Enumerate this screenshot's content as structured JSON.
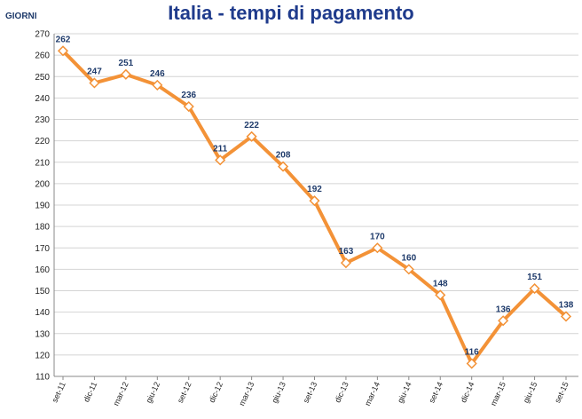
{
  "title": "Italia - tempi di pagamento",
  "colors": {
    "line": "#f39237",
    "marker_fill": "#ffffff",
    "grid": "#d4d4d4",
    "title": "#1f3b8c",
    "labels": "#1f3b6b"
  },
  "chart_data": {
    "type": "line",
    "title": "Italia - tempi di pagamento",
    "ylabel": "GIORNI",
    "xlabel": "",
    "categories": [
      "set-11",
      "dic-11",
      "mar-12",
      "giu-12",
      "set-12",
      "dic-12",
      "mar-13",
      "giu-13",
      "set-13",
      "dic-13",
      "mar-14",
      "giu-14",
      "set-14",
      "dic-14",
      "mar-15",
      "giu-15",
      "set-15"
    ],
    "series": [
      {
        "values": [
          262,
          247,
          251,
          246,
          236,
          211,
          222,
          208,
          192,
          163,
          170,
          160,
          148,
          116,
          136,
          151,
          138
        ]
      }
    ],
    "ylim": [
      110,
      270
    ],
    "ytick_step": 10,
    "grid": "horizontal",
    "legend": "none",
    "data_labels": true
  }
}
